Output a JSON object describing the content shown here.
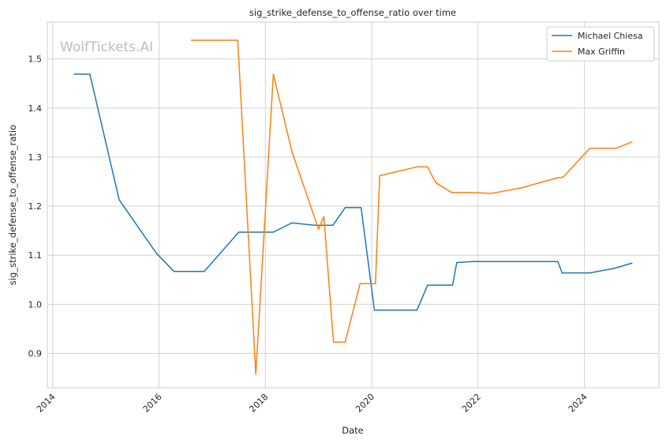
{
  "chart_data": {
    "type": "line",
    "title": "sig_strike_defense_to_offense_ratio over time",
    "xlabel": "Date",
    "ylabel": "sig_strike_defense_to_offense_ratio",
    "watermark": "WolfTickets.AI",
    "xlim": [
      2013.9,
      2025.4
    ],
    "ylim": [
      0.83,
      1.575
    ],
    "xticks": [
      2014,
      2016,
      2018,
      2020,
      2022,
      2024
    ],
    "yticks": [
      0.9,
      1.0,
      1.1,
      1.2,
      1.3,
      1.4,
      1.5
    ],
    "grid": true,
    "legend_position": "top-right",
    "series": [
      {
        "name": "Michael Chiesa",
        "color": "#1f77b4",
        "points": [
          [
            2014.4,
            1.469
          ],
          [
            2014.7,
            1.469
          ],
          [
            2015.25,
            1.213
          ],
          [
            2015.95,
            1.104
          ],
          [
            2016.28,
            1.067
          ],
          [
            2016.85,
            1.067
          ],
          [
            2017.5,
            1.147
          ],
          [
            2018.15,
            1.147
          ],
          [
            2018.5,
            1.166
          ],
          [
            2018.92,
            1.161
          ],
          [
            2019.27,
            1.161
          ],
          [
            2019.5,
            1.197
          ],
          [
            2019.8,
            1.197
          ],
          [
            2020.05,
            0.988
          ],
          [
            2020.85,
            0.988
          ],
          [
            2021.05,
            1.039
          ],
          [
            2021.52,
            1.039
          ],
          [
            2021.6,
            1.085
          ],
          [
            2021.9,
            1.087
          ],
          [
            2023.5,
            1.087
          ],
          [
            2023.58,
            1.064
          ],
          [
            2024.1,
            1.064
          ],
          [
            2024.55,
            1.073
          ],
          [
            2024.9,
            1.084
          ]
        ]
      },
      {
        "name": "Max Griffin",
        "color": "#ff7f0e",
        "points": [
          [
            2016.6,
            1.538
          ],
          [
            2017.48,
            1.538
          ],
          [
            2017.82,
            0.857
          ],
          [
            2018.15,
            1.469
          ],
          [
            2018.5,
            1.311
          ],
          [
            2019.0,
            1.153
          ],
          [
            2019.1,
            1.179
          ],
          [
            2019.28,
            0.923
          ],
          [
            2019.5,
            0.923
          ],
          [
            2019.78,
            1.042
          ],
          [
            2020.07,
            1.042
          ],
          [
            2020.15,
            1.262
          ],
          [
            2020.85,
            1.28
          ],
          [
            2021.05,
            1.28
          ],
          [
            2021.2,
            1.248
          ],
          [
            2021.5,
            1.228
          ],
          [
            2021.85,
            1.228
          ],
          [
            2022.25,
            1.226
          ],
          [
            2022.8,
            1.237
          ],
          [
            2023.5,
            1.258
          ],
          [
            2023.6,
            1.259
          ],
          [
            2024.1,
            1.318
          ],
          [
            2024.6,
            1.318
          ],
          [
            2024.9,
            1.331
          ]
        ]
      }
    ]
  }
}
